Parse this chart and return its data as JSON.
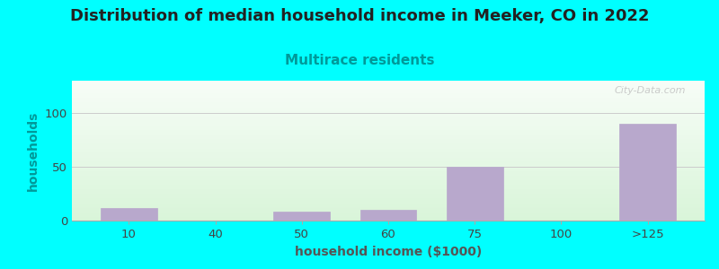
{
  "title": "Distribution of median household income in Meeker, CO in 2022",
  "subtitle": "Multirace residents",
  "xlabel": "household income ($1000)",
  "ylabel": "households",
  "categories": [
    "10",
    "40",
    "50",
    "60",
    "75",
    "100",
    ">125"
  ],
  "values": [
    12,
    0,
    8,
    10,
    50,
    0,
    90
  ],
  "bar_color": "#b8a8cc",
  "title_fontsize": 13,
  "subtitle_fontsize": 11,
  "subtitle_color": "#009999",
  "axis_label_fontsize": 10,
  "tick_fontsize": 9.5,
  "background_color": "#00ffff",
  "ylabel_color": "#009999",
  "ylim": [
    0,
    130
  ],
  "yticks": [
    0,
    50,
    100
  ],
  "watermark": "City-Data.com",
  "title_color": "#222222"
}
